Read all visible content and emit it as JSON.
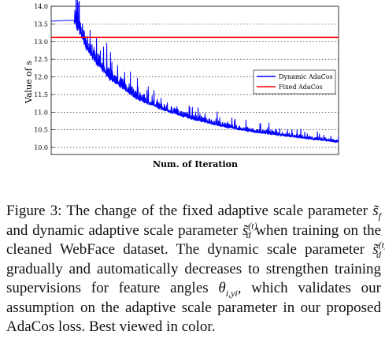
{
  "chart_data": {
    "type": "line",
    "title": "",
    "xlabel": "Num. of Iteration",
    "ylabel": "Value of s",
    "ylim": [
      9.8,
      14.0
    ],
    "y_ticks": [
      "14.0",
      "13.5",
      "13.0",
      "12.5",
      "12.0",
      "11.5",
      "11.0",
      "10.5",
      "10.0"
    ],
    "grid": "horizontal dotted",
    "legend_position": "right",
    "series": [
      {
        "name": "Dynamic AdaCos",
        "color": "#0000ff",
        "x": [
          0,
          0.05,
          0.08,
          0.1,
          0.12,
          0.15,
          0.2,
          0.25,
          0.3,
          0.4,
          0.5,
          0.6,
          0.7,
          0.8,
          0.9,
          1.0
        ],
        "values": [
          13.58,
          13.6,
          13.6,
          13.3,
          12.9,
          12.5,
          12.0,
          11.7,
          11.4,
          11.05,
          10.8,
          10.6,
          10.45,
          10.35,
          10.25,
          10.15
        ]
      },
      {
        "name": "Fixed AdaCos",
        "color": "#ff0000",
        "x": [
          0,
          1.0
        ],
        "values": [
          13.12,
          13.12
        ]
      }
    ]
  },
  "caption": {
    "p1": "Figure 3:  The change of the fixed adaptive scale parameter ",
    "s1": "s̃",
    "s1sub": "f",
    "p2": " and dynamic adaptive scale parameter ",
    "s2": "s̃",
    "s2sup": "(t)",
    "s2sub": "d",
    "p3": " when training on the cleaned WebFace dataset.  The dynamic scale parameter ",
    "s3": "s̃",
    "s3sup": "(t)",
    "s3sub": "d",
    "p4": " gradually and automatically decreases to strengthen training supervisions for feature angles ",
    "theta": "θ",
    "thetasub": "i,yi",
    "p5": ", which validates our assumption on the adaptive scale parameter in our proposed AdaCos loss. Best viewed in color."
  }
}
